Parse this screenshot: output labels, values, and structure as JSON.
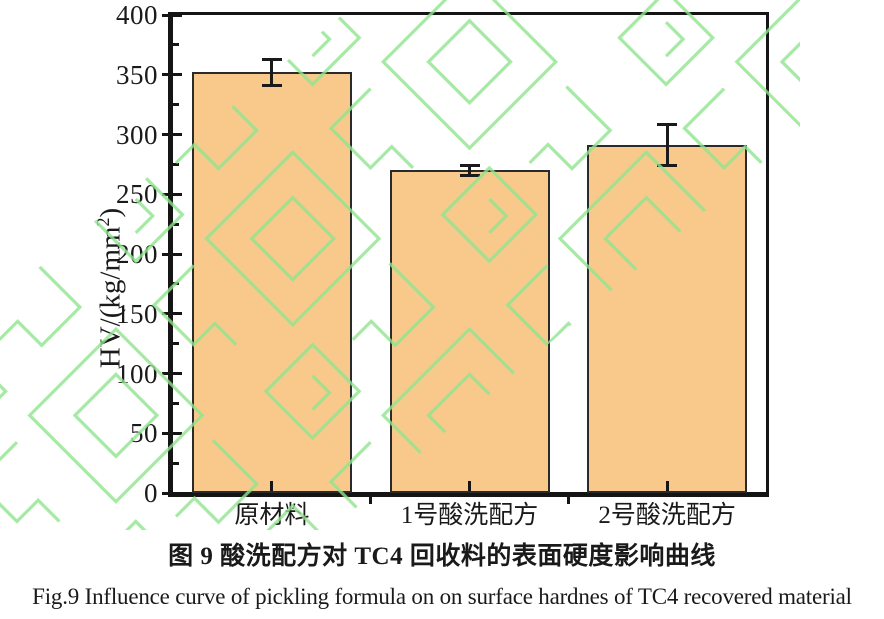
{
  "chart_data": {
    "type": "bar",
    "categories": [
      "原材料",
      "1号酸洗配方",
      "2号酸洗配方"
    ],
    "values": [
      352,
      270,
      291
    ],
    "error_bars": [
      11,
      4,
      17
    ],
    "ylabel_parts": {
      "main": "HV/(kg/mm",
      "sup": "2",
      "close": ")"
    },
    "ylim": [
      0,
      400
    ],
    "yticks": [
      0,
      50,
      100,
      150,
      200,
      250,
      300,
      350,
      400
    ],
    "ytick_minor_step": 25,
    "grid": false,
    "legend": null,
    "bar_color": "#F9C98C",
    "bar_edge_color": "#2a2a2a",
    "axis_color": "#151515",
    "error_color": "#1a1a1a",
    "watermark_color": "#8FE48F"
  },
  "captions": {
    "zh": "图 9 酸洗配方对 TC4 回收料的表面硬度影响曲线",
    "en": "Fig.9 Influence curve of pickling formula on on surface hardnes of TC4 recovered material"
  }
}
